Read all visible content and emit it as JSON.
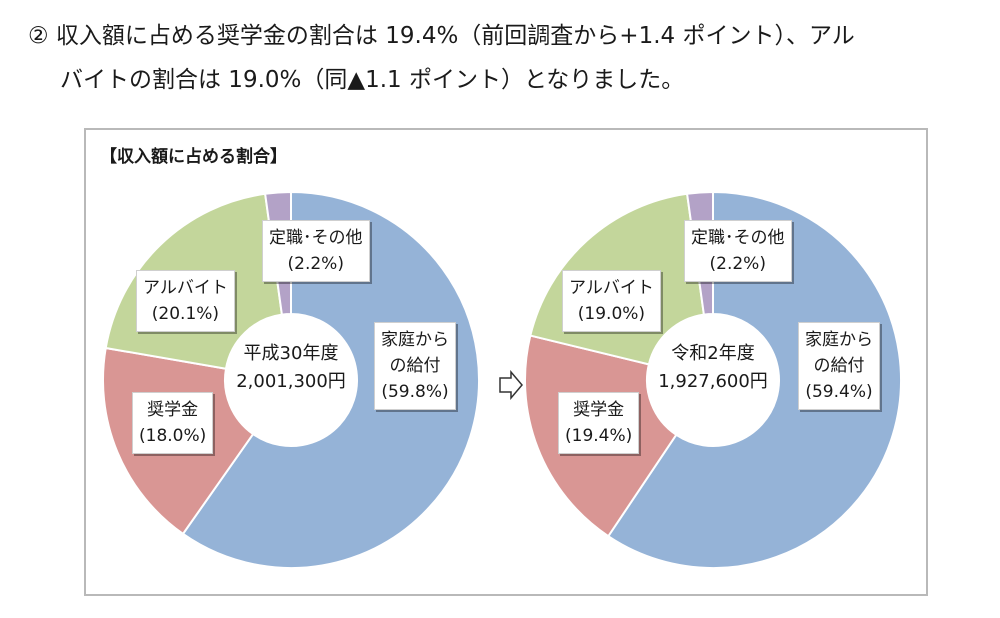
{
  "heading": {
    "line1": "② 収入額に占める奨学金の割合は 19.4%（前回調査から+1.4 ポイント）、アル",
    "line2": "バイトの割合は 19.0%（同▲1.1 ポイント）となりました。"
  },
  "chart_data": {
    "type": "pie",
    "title": "【収入額に占める割合】",
    "charts": [
      {
        "center_label": "平成30年度",
        "center_value": "2,001,300円",
        "slices": [
          {
            "label": "家庭からの給付",
            "value": 59.8,
            "value_text": "(59.8%)",
            "color": "#95b3d7"
          },
          {
            "label": "奨学金",
            "value": 18.0,
            "value_text": "(18.0%)",
            "color": "#d99694"
          },
          {
            "label": "アルバイト",
            "value": 20.1,
            "value_text": "(20.1%)",
            "color": "#c3d69b"
          },
          {
            "label": "定職･その他",
            "value": 2.2,
            "value_text": "(2.2%)",
            "color": "#b3a2c7"
          }
        ]
      },
      {
        "center_label": "令和2年度",
        "center_value": "1,927,600円",
        "slices": [
          {
            "label": "家庭からの給付",
            "value": 59.4,
            "value_text": "(59.4%)",
            "color": "#95b3d7"
          },
          {
            "label": "奨学金",
            "value": 19.4,
            "value_text": "(19.4%)",
            "color": "#d99694"
          },
          {
            "label": "アルバイト",
            "value": 19.0,
            "value_text": "(19.0%)",
            "color": "#c3d69b"
          },
          {
            "label": "定職･その他",
            "value": 2.2,
            "value_text": "(2.2%)",
            "color": "#b3a2c7"
          }
        ]
      }
    ]
  },
  "labels": {
    "left": {
      "teishoku": [
        "定職･その他",
        "(2.2%)"
      ],
      "arubaito": [
        "アルバイト",
        "(20.1%)"
      ],
      "shogakukin": [
        "奨学金",
        "(18.0%)"
      ],
      "katei": [
        "家庭から",
        "の給付",
        "(59.8%)"
      ]
    },
    "right": {
      "teishoku": [
        "定職･その他",
        "(2.2%)"
      ],
      "arubaito": [
        "アルバイト",
        "(19.0%)"
      ],
      "shogakukin": [
        "奨学金",
        "(19.4%)"
      ],
      "katei": [
        "家庭から",
        "の給付",
        "(59.4%)"
      ]
    }
  },
  "colors": {
    "katei": "#95b3d7",
    "shogakukin": "#d99694",
    "arubaito": "#c3d69b",
    "sonota": "#b3a2c7",
    "border": "#b9b9b9"
  }
}
